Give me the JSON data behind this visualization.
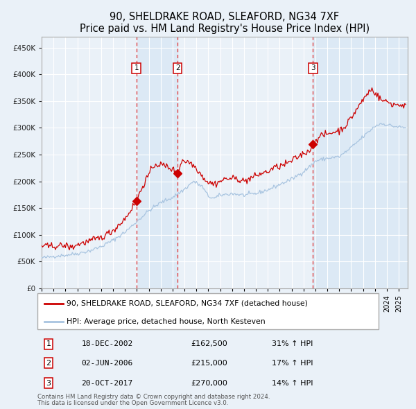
{
  "title": "90, SHELDRAKE ROAD, SLEAFORD, NG34 7XF",
  "subtitle": "Price paid vs. HM Land Registry's House Price Index (HPI)",
  "legend_line1": "90, SHELDRAKE ROAD, SLEAFORD, NG34 7XF (detached house)",
  "legend_line2": "HPI: Average price, detached house, North Kesteven",
  "footer1": "Contains HM Land Registry data © Crown copyright and database right 2024.",
  "footer2": "This data is licensed under the Open Government Licence v3.0.",
  "transactions": [
    {
      "num": 1,
      "date": "18-DEC-2002",
      "price": 162500,
      "pct": "31%",
      "dir": "↑"
    },
    {
      "num": 2,
      "date": "02-JUN-2006",
      "price": 215000,
      "pct": "17%",
      "dir": "↑"
    },
    {
      "num": 3,
      "date": "20-OCT-2017",
      "price": 270000,
      "pct": "14%",
      "dir": "↑"
    }
  ],
  "transaction_dates_decimal": [
    2002.96,
    2006.42,
    2017.8
  ],
  "transaction_prices": [
    162500,
    215000,
    270000
  ],
  "vline_dates_decimal": [
    2002.96,
    2006.42,
    2017.8
  ],
  "hpi_color": "#a8c4e0",
  "price_color": "#cc0000",
  "vline_color": "#e03030",
  "shade_color": "#dce9f5",
  "background_color": "#eaf1f8",
  "plot_bg_color": "#eaf1f8",
  "grid_color": "#ffffff",
  "ylabel_color": "#222222",
  "title_fontsize": 10.5,
  "tick_fontsize": 7.5,
  "ylim": [
    0,
    470000
  ],
  "yticks": [
    0,
    50000,
    100000,
    150000,
    200000,
    250000,
    300000,
    350000,
    400000,
    450000
  ],
  "xstart": 1995.0,
  "xend": 2025.75
}
